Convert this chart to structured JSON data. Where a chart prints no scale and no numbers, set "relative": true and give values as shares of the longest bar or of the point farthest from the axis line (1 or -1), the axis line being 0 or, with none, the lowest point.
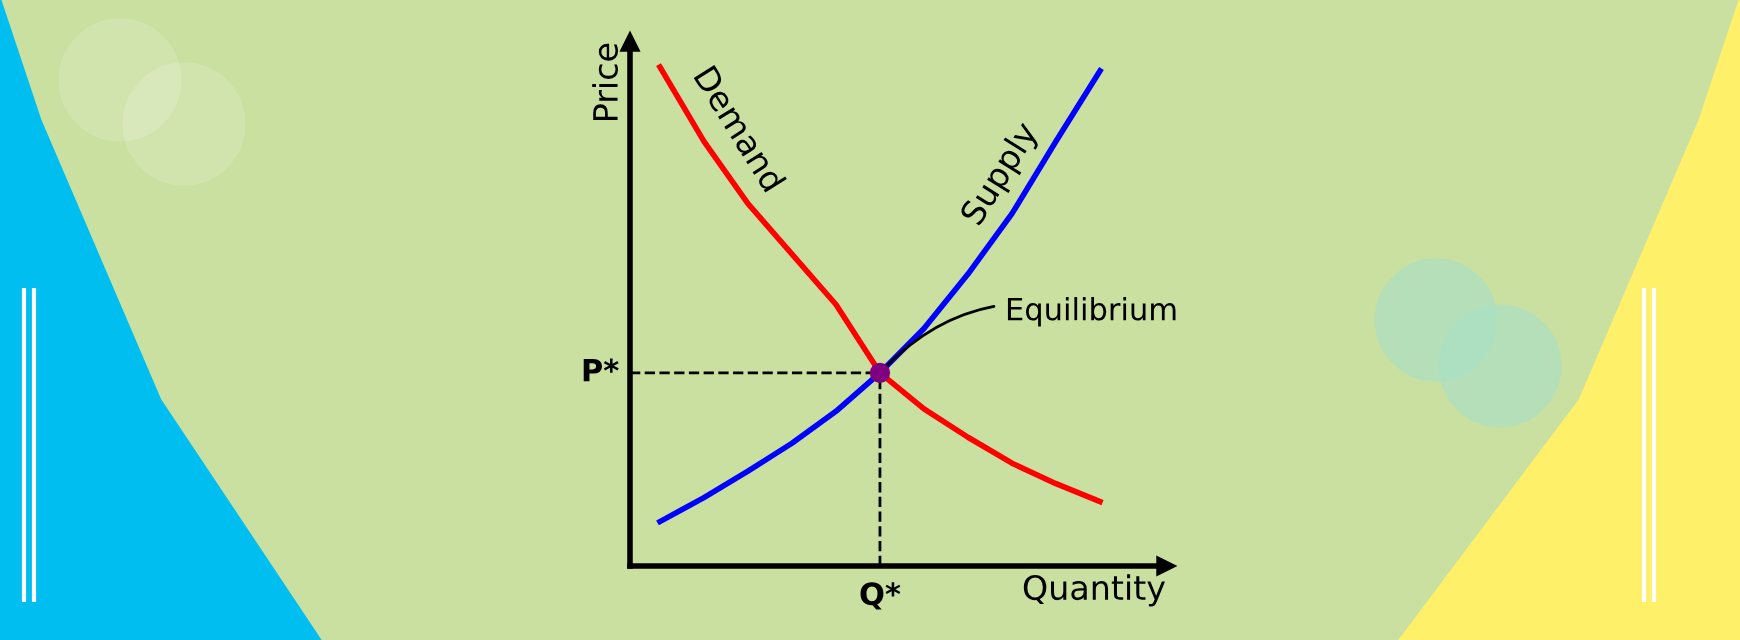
{
  "chart_data": {
    "type": "line",
    "relative": true,
    "xlabel": "Quantity",
    "ylabel": "Price",
    "categories": [
      null,
      null,
      null,
      null,
      null,
      null,
      null,
      null,
      null,
      null,
      null
    ],
    "series": [
      {
        "name": "Demand",
        "color": "#ff0000",
        "values": [
          1.0,
          0.851,
          0.726,
          0.625,
          0.524,
          0.387,
          0.315,
          0.258,
          0.206,
          0.165,
          0.129
        ]
      },
      {
        "name": "Supply",
        "color": "#0000ff",
        "values": [
          0.089,
          0.137,
          0.19,
          0.246,
          0.31,
          0.387,
          0.476,
          0.585,
          0.706,
          0.851,
          0.992
        ]
      }
    ],
    "ref_lines": [
      {
        "axis": "y",
        "value": 0.387,
        "label": "P*",
        "line_style": "dashed",
        "color": "#000000"
      }
    ],
    "annotations": [
      "Equilibrium",
      "Q*"
    ],
    "line_style": "solid",
    "marker": "none"
  }
}
